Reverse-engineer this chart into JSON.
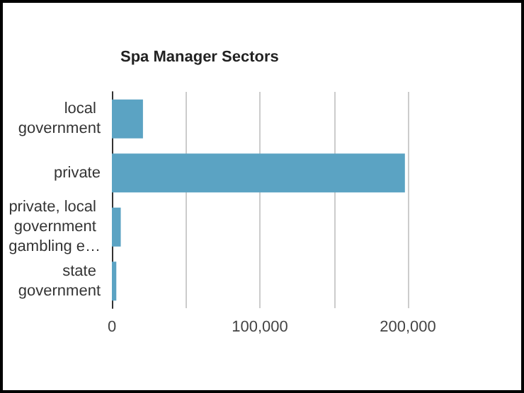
{
  "chart_data": {
    "type": "bar",
    "orientation": "horizontal",
    "title": "Spa Manager Sectors",
    "categories": [
      "local government",
      "private",
      "private, local government gambling e…",
      "state government"
    ],
    "values": [
      21000,
      198000,
      6000,
      3000
    ],
    "color": "#5ba3c3",
    "xlim": [
      0,
      200000
    ],
    "xticks": [
      0,
      {
        "value": 50000,
        "label": null
      },
      {
        "value": 100000,
        "label": "100,000"
      },
      {
        "value": 150000,
        "label": null
      },
      {
        "value": 200000,
        "label": "200,000"
      }
    ],
    "grid": "x"
  }
}
